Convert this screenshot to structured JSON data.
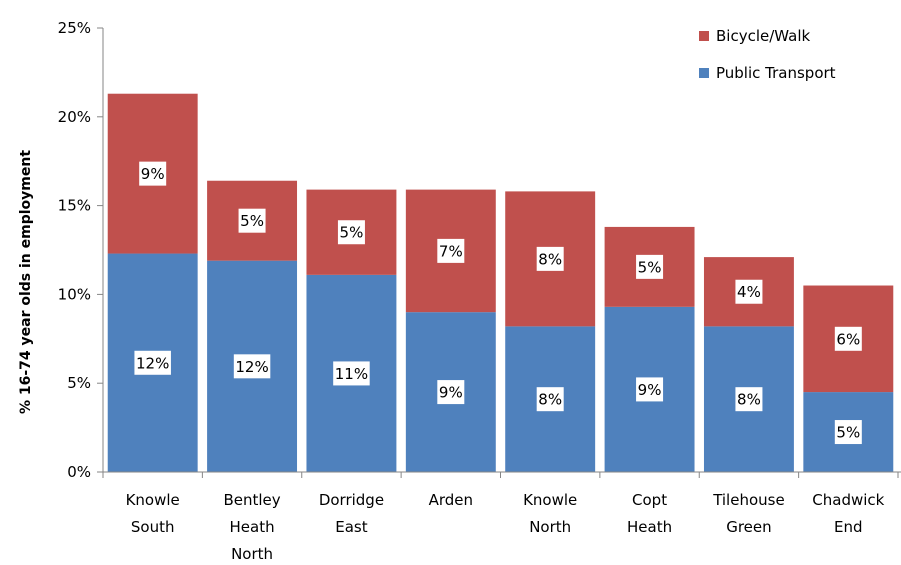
{
  "chart_data": {
    "type": "bar",
    "stacked": true,
    "ylabel": "% 16-74 year olds in employment",
    "ylim": [
      0,
      25
    ],
    "yticks": [
      "0%",
      "5%",
      "10%",
      "15%",
      "20%",
      "25%"
    ],
    "categories": [
      [
        "Knowle",
        "South"
      ],
      [
        "Bentley",
        "Heath",
        "North"
      ],
      [
        "Dorridge",
        "East"
      ],
      [
        "Arden"
      ],
      [
        "Knowle",
        "North"
      ],
      [
        "Copt",
        "Heath"
      ],
      [
        "Tilehouse",
        "Green"
      ],
      [
        "Chadwick",
        "End"
      ]
    ],
    "series": [
      {
        "name": "Public Transport",
        "color": "#4f81bd",
        "values": [
          12.3,
          11.9,
          11.1,
          9.0,
          8.2,
          9.3,
          8.2,
          4.5
        ],
        "labels": [
          "12%",
          "12%",
          "11%",
          "9%",
          "8%",
          "9%",
          "8%",
          "5%"
        ]
      },
      {
        "name": "Bicycle/Walk",
        "color": "#c0504d",
        "values": [
          9.0,
          4.5,
          4.8,
          6.9,
          7.6,
          4.5,
          3.9,
          6.0
        ],
        "labels": [
          "9%",
          "5%",
          "5%",
          "7%",
          "8%",
          "5%",
          "4%",
          "6%"
        ]
      }
    ],
    "grid": false,
    "legend": "top-right",
    "legend_order": [
      "Bicycle/Walk",
      "Public Transport"
    ]
  }
}
